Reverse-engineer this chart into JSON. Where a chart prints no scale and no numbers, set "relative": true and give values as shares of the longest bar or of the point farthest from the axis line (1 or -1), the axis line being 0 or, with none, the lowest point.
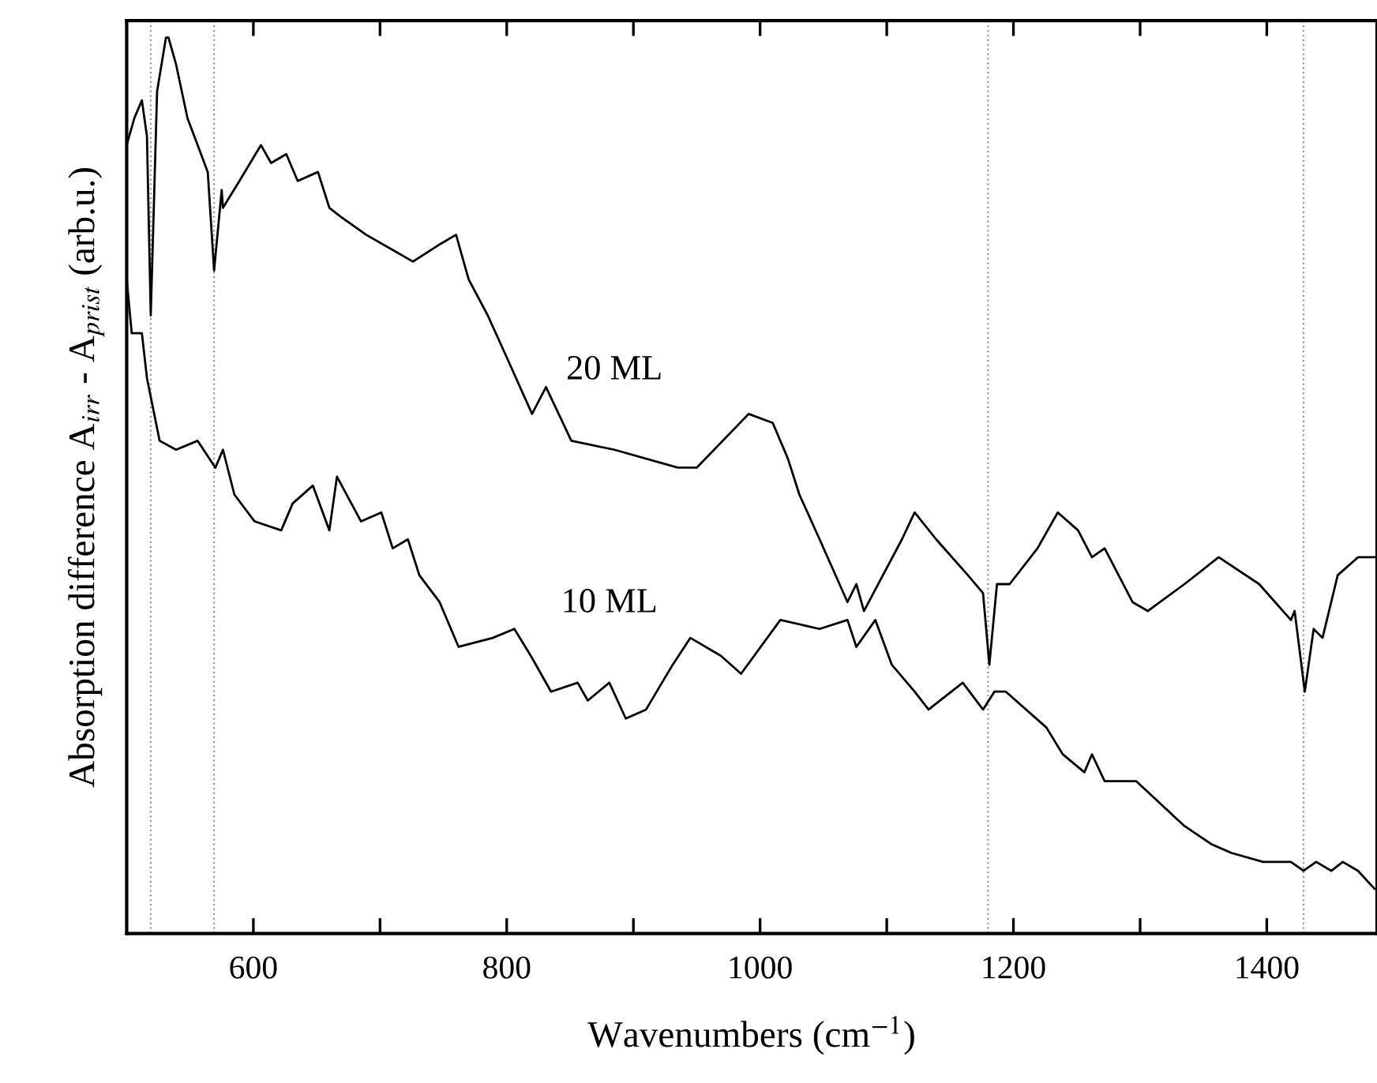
{
  "chart_data": {
    "type": "line",
    "xlabel": "Wavenumbers (cm$^{−1}$)",
    "ylabel": "Absorption difference A$_{irr}$ - A$_{prist}$ (arb.u.)",
    "relative": true,
    "xlim": [
      500,
      1487
    ],
    "xticks": [
      600,
      {
        "value": 700,
        "label": null
      },
      800,
      {
        "value": 900,
        "label": null
      },
      1000,
      {
        "value": 1100,
        "label": null
      },
      1200,
      {
        "value": 1300,
        "label": null
      },
      1400
    ],
    "grid": false,
    "legend": false,
    "marker": "none",
    "line_style": "solid",
    "ref_lines": [
      {
        "axis": "x",
        "value": 519,
        "color": "#999999",
        "line_style": "dotted"
      },
      {
        "axis": "x",
        "value": 569,
        "color": "#999999",
        "line_style": "dotted"
      },
      {
        "axis": "x",
        "value": 1180,
        "color": "#999999",
        "line_style": "dotted"
      },
      {
        "axis": "x",
        "value": 1429,
        "color": "#999999",
        "line_style": "dotted"
      }
    ],
    "series": [
      {
        "name": "20 ML",
        "color": "#000000",
        "x": [
          500,
          506,
          512,
          516,
          519,
          524,
          531,
          533,
          539,
          548,
          556,
          564,
          569,
          575,
          576,
          589,
          606,
          614,
          626,
          635,
          651,
          660,
          669,
          689,
          726,
          748,
          760,
          770,
          785,
          801,
          820,
          831,
          851,
          885,
          935,
          950,
          991,
          1010,
          1022,
          1031,
          1047,
          1069,
          1076,
          1082,
          1097,
          1112,
          1122,
          1139,
          1164,
          1176,
          1181,
          1187,
          1197,
          1219,
          1235,
          1251,
          1262,
          1272,
          1294,
          1306,
          1335,
          1362,
          1394,
          1419,
          1422,
          1430,
          1437,
          1444,
          1456,
          1472,
          1485
        ],
        "values": [
          0.88,
          0.91,
          0.93,
          0.89,
          0.69,
          0.94,
          1.0,
          1.0,
          0.97,
          0.91,
          0.88,
          0.85,
          0.74,
          0.83,
          0.81,
          0.84,
          0.88,
          0.86,
          0.87,
          0.84,
          0.85,
          0.81,
          0.8,
          0.78,
          0.75,
          0.77,
          0.78,
          0.73,
          0.69,
          0.64,
          0.58,
          0.61,
          0.55,
          0.54,
          0.52,
          0.52,
          0.58,
          0.57,
          0.53,
          0.49,
          0.44,
          0.37,
          0.39,
          0.36,
          0.4,
          0.44,
          0.47,
          0.44,
          0.4,
          0.38,
          0.3,
          0.39,
          0.39,
          0.43,
          0.47,
          0.45,
          0.42,
          0.43,
          0.37,
          0.36,
          0.39,
          0.42,
          0.39,
          0.35,
          0.36,
          0.27,
          0.34,
          0.33,
          0.4,
          0.42,
          0.42
        ]
      },
      {
        "name": "10 ML",
        "color": "#000000",
        "x": [
          500,
          504,
          512,
          516,
          526,
          539,
          556,
          570,
          576,
          585,
          601,
          622,
          631,
          647,
          660,
          666,
          685,
          701,
          710,
          722,
          731,
          747,
          762,
          789,
          806,
          819,
          835,
          856,
          864,
          881,
          894,
          910,
          931,
          945,
          969,
          985,
          1016,
          1047,
          1069,
          1076,
          1091,
          1104,
          1122,
          1133,
          1160,
          1176,
          1185,
          1194,
          1226,
          1239,
          1256,
          1262,
          1272,
          1297,
          1335,
          1356,
          1372,
          1397,
          1419,
          1429,
          1439,
          1451,
          1460,
          1472,
          1485
        ],
        "values": [
          0.73,
          0.67,
          0.67,
          0.62,
          0.55,
          0.54,
          0.55,
          0.52,
          0.54,
          0.49,
          0.46,
          0.45,
          0.48,
          0.5,
          0.45,
          0.51,
          0.46,
          0.47,
          0.43,
          0.44,
          0.4,
          0.37,
          0.32,
          0.33,
          0.34,
          0.31,
          0.27,
          0.28,
          0.26,
          0.28,
          0.24,
          0.25,
          0.3,
          0.33,
          0.31,
          0.29,
          0.35,
          0.34,
          0.35,
          0.32,
          0.35,
          0.3,
          0.27,
          0.25,
          0.28,
          0.25,
          0.27,
          0.27,
          0.23,
          0.2,
          0.18,
          0.2,
          0.17,
          0.17,
          0.12,
          0.1,
          0.09,
          0.08,
          0.08,
          0.07,
          0.08,
          0.07,
          0.08,
          0.07,
          0.05
        ]
      }
    ]
  }
}
